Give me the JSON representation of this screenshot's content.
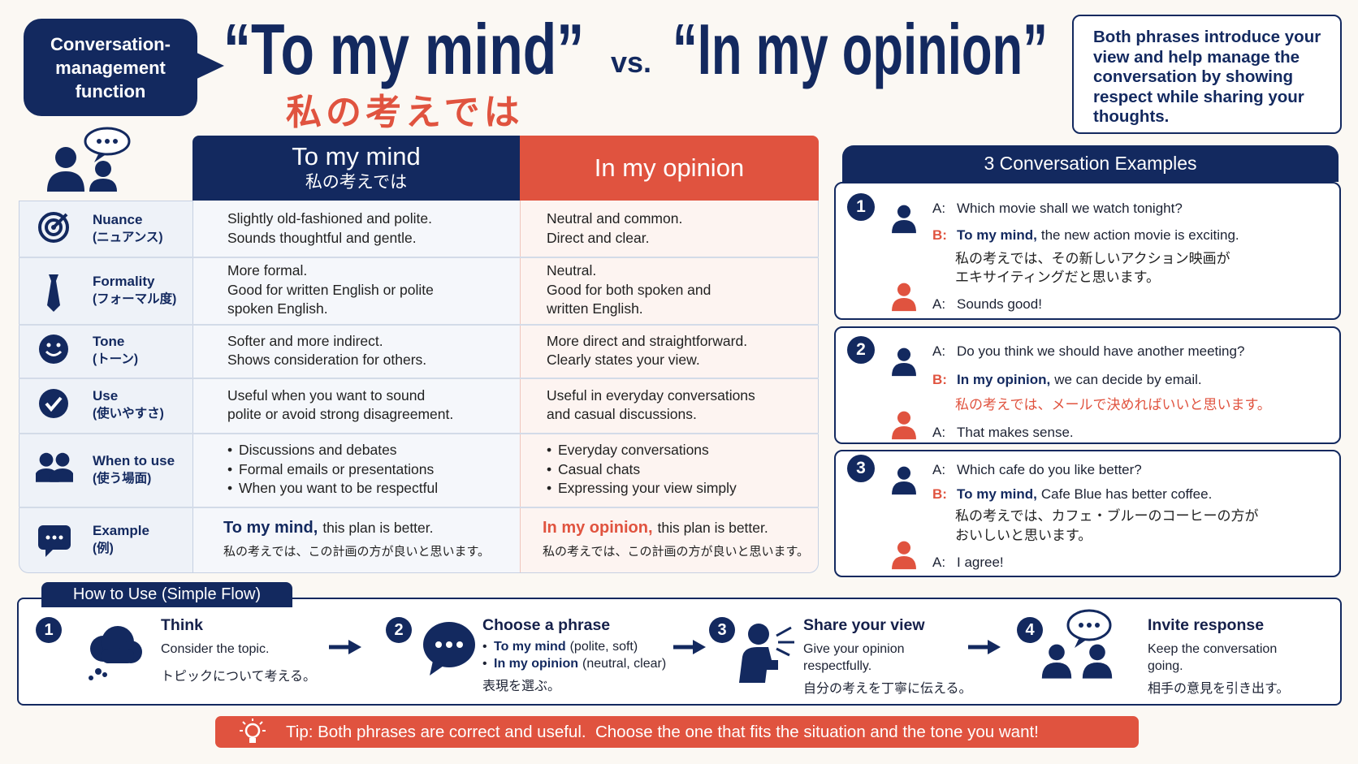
{
  "badge": [
    "Conversation-",
    "management",
    "function"
  ],
  "title": {
    "phrase1": "“To my mind”",
    "vs": "vs.",
    "phrase2": "“In my opinion”",
    "japanese": "私の考えでは"
  },
  "summary": "Both phrases introduce your view and help manage the conversation by showing respect while sharing your thoughts.",
  "table": {
    "columns": [
      {
        "title": "To my mind",
        "subtitle": "私の考えでは"
      },
      {
        "title": "In my opinion"
      }
    ],
    "rows": [
      {
        "label": "Nuance",
        "sublabel": "(ニュアンス)",
        "col1": {
          "lines": [
            "Slightly old-fashioned and polite.",
            "Sounds thoughtful and gentle."
          ]
        },
        "col2": {
          "lines": [
            "Neutral and common.",
            "Direct and clear."
          ]
        }
      },
      {
        "label": "Formality",
        "sublabel": "(フォーマル度)",
        "col1": {
          "lines": [
            "More formal.",
            "Good for written English or polite",
            "spoken English."
          ]
        },
        "col2": {
          "lines": [
            "Neutral.",
            "Good for both spoken and",
            "written English."
          ]
        }
      },
      {
        "label": "Tone",
        "sublabel": "(トーン)",
        "col1": {
          "lines": [
            "Softer and more indirect.",
            "Shows consideration for others."
          ]
        },
        "col2": {
          "lines": [
            "More direct and straightforward.",
            "Clearly states your view."
          ]
        }
      },
      {
        "label": "Use",
        "sublabel": "(使いやすさ)",
        "col1": {
          "lines": [
            "Useful when you want to sound",
            "polite or avoid strong disagreement."
          ]
        },
        "col2": {
          "lines": [
            "Useful in everyday conversations",
            "and casual discussions."
          ]
        }
      },
      {
        "label": "When to use",
        "sublabel": "(使う場面)",
        "col1": {
          "bullets": [
            "Discussions and debates",
            "Formal emails or presentations",
            "When you want to be respectful"
          ]
        },
        "col2": {
          "bullets": [
            "Everyday conversations",
            "Casual chats",
            "Expressing your view simply"
          ]
        }
      },
      {
        "label": "Example",
        "sublabel": "(例)",
        "col1": {
          "phrase": "To my mind,",
          "text": "this plan is better.",
          "japanese": "私の考えでは、この計画の方が良いと思います。"
        },
        "col2": {
          "phrase": "In my opinion,",
          "text": "this plan is better.",
          "japanese": "私の考えでは、この計画の方が良いと思います。"
        }
      }
    ]
  },
  "examples": {
    "title": "3 Conversation Examples",
    "items": [
      {
        "number": 1,
        "lines": [
          {
            "speaker": "A:",
            "text": "Which movie shall we watch tonight?"
          },
          {
            "speaker": "B:",
            "phrase": "To my mind,",
            "text": "the new action movie is exciting.",
            "japanese": [
              "私の考えでは、その新しいアクション映画が",
              "エキサイティングだと思います。"
            ]
          },
          {
            "speaker": "A:",
            "text": "Sounds good!"
          }
        ]
      },
      {
        "number": 2,
        "japanese_color": "#e0533f",
        "lines": [
          {
            "speaker": "A:",
            "text": "Do you think we should have another meeting?"
          },
          {
            "speaker": "B:",
            "phrase": "In my opinion,",
            "text": "we can decide by email.",
            "japanese": [
              "私の考えでは、メールで決めればいいと思います。"
            ]
          },
          {
            "speaker": "A:",
            "text": "That makes sense."
          }
        ]
      },
      {
        "number": 3,
        "lines": [
          {
            "speaker": "A:",
            "text": "Which cafe do you like better?"
          },
          {
            "speaker": "B:",
            "phrase": "To my mind,",
            "text": "Cafe Blue has better coffee.",
            "japanese": [
              "私の考えでは、カフェ・ブルーのコーヒーの方が",
              "おいしいと思います。"
            ]
          },
          {
            "speaker": "A:",
            "text": "I agree!"
          }
        ]
      }
    ]
  },
  "flow": {
    "title": "How to Use (Simple Flow)",
    "steps": [
      {
        "number": 1,
        "title": "Think",
        "text": [
          "Consider the topic."
        ],
        "japanese": "トピックについて考える。"
      },
      {
        "number": 2,
        "title": "Choose a phrase",
        "options": [
          {
            "phrase": "To my mind",
            "note": "(polite, soft)"
          },
          {
            "phrase": "In my opinion",
            "note": "(neutral, clear)"
          }
        ],
        "japanese": "表現を選ぶ。"
      },
      {
        "number": 3,
        "title": "Share your view",
        "text": [
          "Give your opinion",
          "respectfully."
        ],
        "japanese": "自分の考えを丁寧に伝える。"
      },
      {
        "number": 4,
        "title": "Invite response",
        "text": [
          "Keep the conversation",
          "going."
        ],
        "japanese": "相手の意見を引き出す。"
      }
    ]
  },
  "tip": "Tip: Both phrases are correct and useful.  Choose the one that fits the situation and the tone you want!"
}
